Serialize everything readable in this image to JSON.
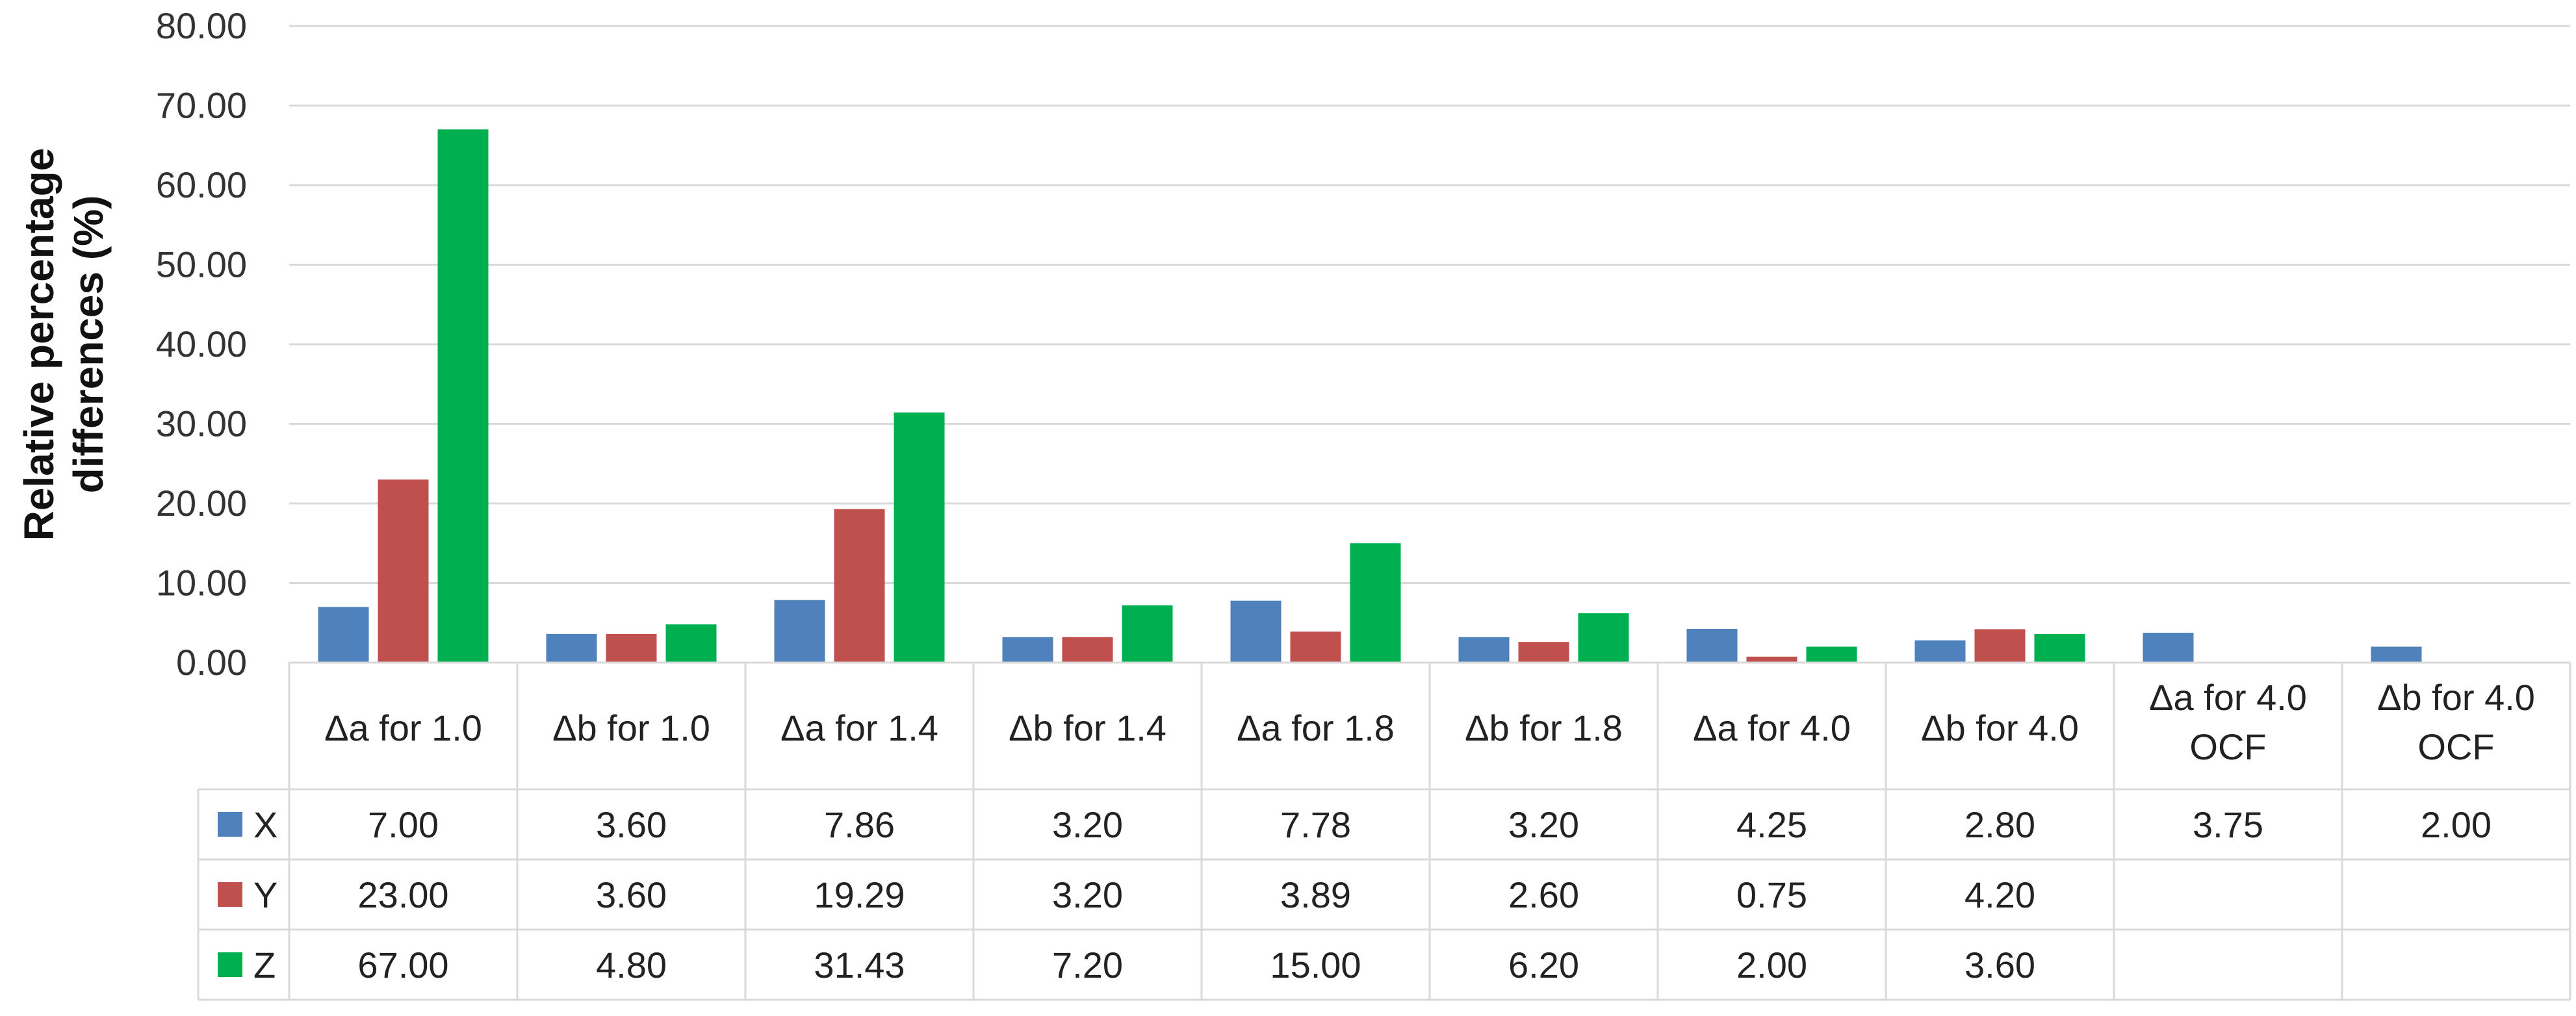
{
  "chart_data": {
    "type": "bar",
    "ylabel_lines": [
      "Relative percentage",
      "differences (%)"
    ],
    "ylim": [
      0,
      80
    ],
    "y_ticks": [
      "0.00",
      "10.00",
      "20.00",
      "30.00",
      "40.00",
      "50.00",
      "60.00",
      "70.00",
      "80.00"
    ],
    "grid": true,
    "legend": "data-table",
    "categories": [
      [
        "Δa  for 1.0"
      ],
      [
        "Δb for 1.0"
      ],
      [
        "Δa  for 1.4"
      ],
      [
        "Δb for 1.4"
      ],
      [
        "Δa  for 1.8"
      ],
      [
        "Δb for 1.8"
      ],
      [
        "Δa  for 4.0"
      ],
      [
        "Δb for 4.0"
      ],
      [
        "Δa for 4.0",
        "OCF"
      ],
      [
        "Δb for 4.0",
        "OCF"
      ]
    ],
    "series": [
      {
        "name": "X",
        "color": "#4f81bd",
        "values": [
          7.0,
          3.6,
          7.86,
          3.2,
          7.78,
          3.2,
          4.25,
          2.8,
          3.75,
          2.0
        ],
        "labels": [
          "7.00",
          "3.60",
          "7.86",
          "3.20",
          "7.78",
          "3.20",
          "4.25",
          "2.80",
          "3.75",
          "2.00"
        ]
      },
      {
        "name": "Y",
        "color": "#c0504d",
        "values": [
          23.0,
          3.6,
          19.29,
          3.2,
          3.89,
          2.6,
          0.75,
          4.2,
          null,
          null
        ],
        "labels": [
          "23.00",
          "3.60",
          "19.29",
          "3.20",
          "3.89",
          "2.60",
          "0.75",
          "4.20",
          "",
          ""
        ]
      },
      {
        "name": "Z",
        "color": "#00b050",
        "values": [
          67.0,
          4.8,
          31.43,
          7.2,
          15.0,
          6.2,
          2.0,
          3.6,
          null,
          null
        ],
        "labels": [
          "67.00",
          "4.80",
          "31.43",
          "7.20",
          "15.00",
          "6.20",
          "2.00",
          "3.60",
          "",
          ""
        ]
      }
    ]
  }
}
